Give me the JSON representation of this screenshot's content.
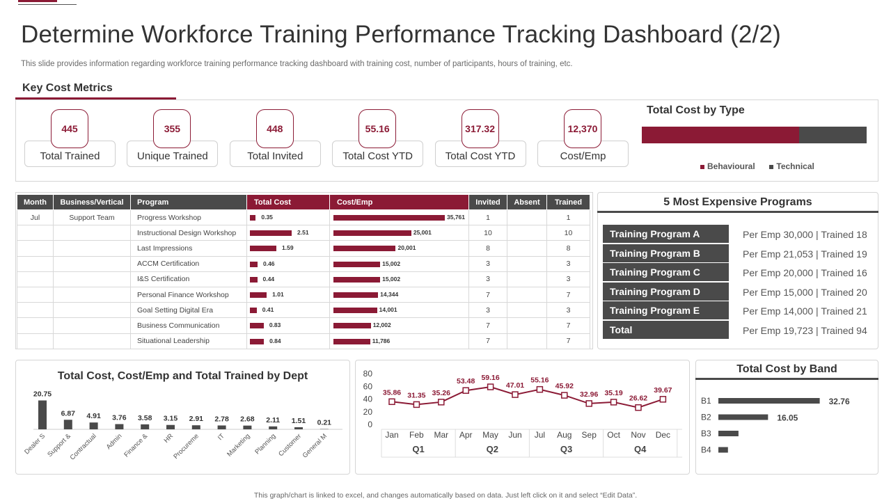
{
  "title": "Determine Workforce Training Performance Tracking Dashboard (2/2)",
  "subtitle": "This slide provides information regarding workforce training performance tracking dashboard with training cost, number of participants, hours of training, etc.",
  "section_label": "Key Cost Metrics",
  "kpis": [
    {
      "value": "445",
      "label": "Total Trained"
    },
    {
      "value": "355",
      "label": "Unique Trained"
    },
    {
      "value": "448",
      "label": "Total Invited"
    },
    {
      "value": "55.16",
      "label": "Total Cost YTD"
    },
    {
      "value": "317.32",
      "label": "Total Cost YTD"
    },
    {
      "value": "12,370",
      "label": "Cost/Emp"
    }
  ],
  "cost_by_type": {
    "title": "Total Cost by Type",
    "behavioural_share": 0.7,
    "legend": [
      "Behavioural",
      "Technical"
    ],
    "colors": {
      "behavioural": "#8b1a35",
      "technical": "#4a4a4a"
    }
  },
  "table": {
    "headers": [
      "Month",
      "Business/Vertical",
      "Program",
      "Total Cost",
      "Cost/Emp",
      "Invited",
      "Absent",
      "Trained"
    ],
    "rows": [
      {
        "month": "Jul",
        "vertical": "Support Team",
        "program": "Progress Workshop",
        "cost": 0.35,
        "cost_label": "0.35",
        "emp": 35761,
        "emp_label": "35,761",
        "invited": "1",
        "absent": "",
        "trained": "1"
      },
      {
        "month": "",
        "vertical": "",
        "program": "Instructional Design Workshop",
        "cost": 2.51,
        "cost_label": "2.51",
        "emp": 25001,
        "emp_label": "25,001",
        "invited": "10",
        "absent": "",
        "trained": "10"
      },
      {
        "month": "",
        "vertical": "",
        "program": "Last Impressions",
        "cost": 1.59,
        "cost_label": "1.59",
        "emp": 20001,
        "emp_label": "20,001",
        "invited": "8",
        "absent": "",
        "trained": "8"
      },
      {
        "month": "",
        "vertical": "",
        "program": "ACCM Certification",
        "cost": 0.46,
        "cost_label": "0.46",
        "emp": 15002,
        "emp_label": "15,002",
        "invited": "3",
        "absent": "",
        "trained": "3"
      },
      {
        "month": "",
        "vertical": "",
        "program": "I&S Certification",
        "cost": 0.44,
        "cost_label": "0.44",
        "emp": 15002,
        "emp_label": "15,002",
        "invited": "3",
        "absent": "",
        "trained": "3"
      },
      {
        "month": "",
        "vertical": "",
        "program": "Personal Finance Workshop",
        "cost": 1.01,
        "cost_label": "1.01",
        "emp": 14344,
        "emp_label": "14,344",
        "invited": "7",
        "absent": "",
        "trained": "7"
      },
      {
        "month": "",
        "vertical": "",
        "program": "Goal Setting Digital Era",
        "cost": 0.41,
        "cost_label": "0.41",
        "emp": 14001,
        "emp_label": "14,001",
        "invited": "3",
        "absent": "",
        "trained": "3"
      },
      {
        "month": "",
        "vertical": "",
        "program": "Business Communication",
        "cost": 0.83,
        "cost_label": "0.83",
        "emp": 12002,
        "emp_label": "12,002",
        "invited": "7",
        "absent": "",
        "trained": "7"
      },
      {
        "month": "",
        "vertical": "",
        "program": "Situational Leadership",
        "cost": 0.84,
        "cost_label": "0.84",
        "emp": 11786,
        "emp_label": "11,786",
        "invited": "7",
        "absent": "",
        "trained": "7"
      }
    ]
  },
  "expensive_programs": {
    "title": "5 Most Expensive Programs",
    "items": [
      {
        "name": "Training Program A",
        "info": "Per Emp 30,000 | Trained  18"
      },
      {
        "name": "Training Program B",
        "info": "Per Emp 21,053 | Trained  19"
      },
      {
        "name": "Training Program C",
        "info": "Per Emp 20,000 | Trained  16"
      },
      {
        "name": "Training Program D",
        "info": "Per Emp 15,000 | Trained  20"
      },
      {
        "name": "Training Program E",
        "info": "Per Emp 14,000 | Trained  21"
      },
      {
        "name": "Total",
        "info": "Per Emp 19,723 | Trained  94"
      }
    ]
  },
  "chart_data": [
    {
      "type": "bar",
      "title": "Total Cost, Cost/Emp and Total Trained by Dept",
      "categories": [
        "Dealer S",
        "Support &",
        "Contractual",
        "Admin",
        "Finance &",
        "HR",
        "Procureme",
        "IT",
        "Marketing",
        "Planning",
        "Customer",
        "General M"
      ],
      "values": [
        20.75,
        6.87,
        4.91,
        3.76,
        3.58,
        3.15,
        2.91,
        2.78,
        2.68,
        2.11,
        1.51,
        0.21
      ],
      "labels": [
        "20.75",
        "6.87",
        "4.91",
        "3.76",
        "3.58",
        "3.15",
        "2.91",
        "2.78",
        "2.68",
        "2.11",
        "1.51",
        "0.21"
      ],
      "ylim": [
        0,
        22
      ]
    },
    {
      "type": "line",
      "title": "",
      "x": [
        "Jan",
        "Feb",
        "Mar",
        "Apr",
        "May",
        "Jun",
        "Jul",
        "Aug",
        "Sep",
        "Oct",
        "Nov",
        "Dec"
      ],
      "values": [
        35.86,
        31.35,
        35.26,
        53.48,
        59.16,
        47.01,
        55.16,
        45.92,
        32.96,
        35.19,
        26.62,
        39.67
      ],
      "labels": [
        "35.86",
        "31.35",
        "35.26",
        "53.48",
        "59.16",
        "47.01",
        "55.16",
        "45.92",
        "32.96",
        "35.19",
        "26.62",
        "39.67"
      ],
      "quarters": [
        "Q1",
        "Q2",
        "Q3",
        "Q4"
      ],
      "yticks": [
        "0",
        "20",
        "40",
        "60",
        "80"
      ],
      "ylim": [
        0,
        80
      ]
    },
    {
      "type": "bar",
      "title": "Total Cost by Band",
      "categories": [
        "B1",
        "B2",
        "B3",
        "B4"
      ],
      "values": [
        32.76,
        16.05,
        6.5,
        3.1
      ],
      "labels": [
        "32.76",
        "16.05",
        "",
        ""
      ],
      "xlim": [
        0,
        36
      ]
    }
  ],
  "footer": "This graph/chart is linked to excel, and changes automatically based on data. Just left click on it and select “Edit Data”."
}
